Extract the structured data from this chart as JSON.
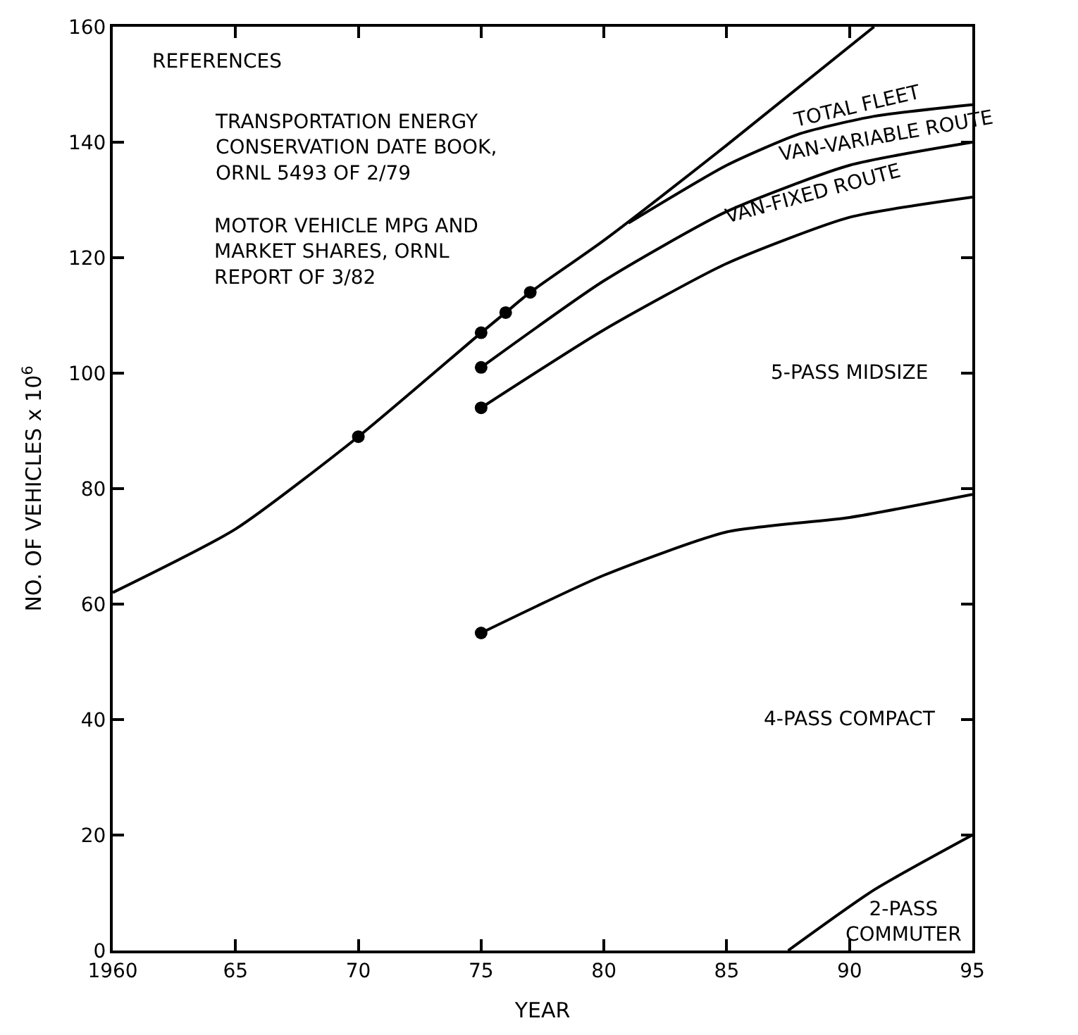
{
  "chart_data": {
    "type": "line",
    "xlabel": "YEAR",
    "ylabel": "NO. OF VEHICLES x 10$^{6}$",
    "xlim": [
      1960,
      1995
    ],
    "xticks": [
      {
        "value": 1960,
        "label": "1960"
      },
      {
        "value": 1965,
        "label": "65"
      },
      {
        "value": 1970,
        "label": "70"
      },
      {
        "value": 1975,
        "label": "75"
      },
      {
        "value": 1980,
        "label": "80"
      },
      {
        "value": 1985,
        "label": "85"
      },
      {
        "value": 1990,
        "label": "90"
      },
      {
        "value": 1995,
        "label": "95"
      }
    ],
    "ylim": [
      0,
      160
    ],
    "yticks": [
      0,
      20,
      40,
      60,
      80,
      100,
      120,
      140,
      160
    ],
    "marker": "none",
    "line_style": "solid",
    "series": [
      {
        "color": "#000000",
        "x": [
          1960,
          1965,
          1970,
          1975,
          1976,
          1977,
          1980,
          1985,
          1991
        ],
        "values": [
          62,
          73,
          89,
          107,
          110.5,
          114,
          123,
          139.5,
          160
        ]
      },
      {
        "color": "#000000",
        "x": [
          1981,
          1985,
          1988,
          1991,
          1995
        ],
        "values": [
          126,
          136,
          141.5,
          144.5,
          146.5
        ]
      },
      {
        "color": "#000000",
        "x": [
          1975,
          1980,
          1985,
          1990,
          1995
        ],
        "values": [
          101,
          116,
          128,
          136,
          140
        ]
      },
      {
        "color": "#000000",
        "x": [
          1975,
          1980,
          1985,
          1990,
          1995
        ],
        "values": [
          94,
          107.5,
          119,
          127,
          130.5
        ]
      },
      {
        "color": "#000000",
        "x": [
          1975,
          1980,
          1985,
          1990,
          1995
        ],
        "values": [
          55,
          65,
          72.5,
          75,
          79
        ]
      },
      {
        "color": "#000000",
        "x": [
          1987.5,
          1991,
          1995
        ],
        "values": [
          0,
          10.5,
          20
        ]
      },
      {
        "type": "scatter",
        "marker": "circle",
        "color": "#000000",
        "x": [
          1970,
          1975,
          1976,
          1977,
          1975,
          1975,
          1975
        ],
        "values": [
          89,
          107,
          110.5,
          114,
          101,
          94,
          55
        ]
      }
    ],
    "annotations": [
      "REFERENCES",
      "TRANSPORTATION ENERGY\nCONSERVATION DATE BOOK,\nORNL 5493 OF 2/79",
      "MOTOR VEHICLE MPG AND\nMARKET SHARES, ORNL\nREPORT OF 3/82",
      "TOTAL FLEET",
      "VAN-VARIABLE ROUTE",
      "VAN-FIXED ROUTE",
      "5-PASS MIDSIZE",
      "4-PASS COMPACT",
      "2-PASS\nCOMMUTER"
    ]
  }
}
